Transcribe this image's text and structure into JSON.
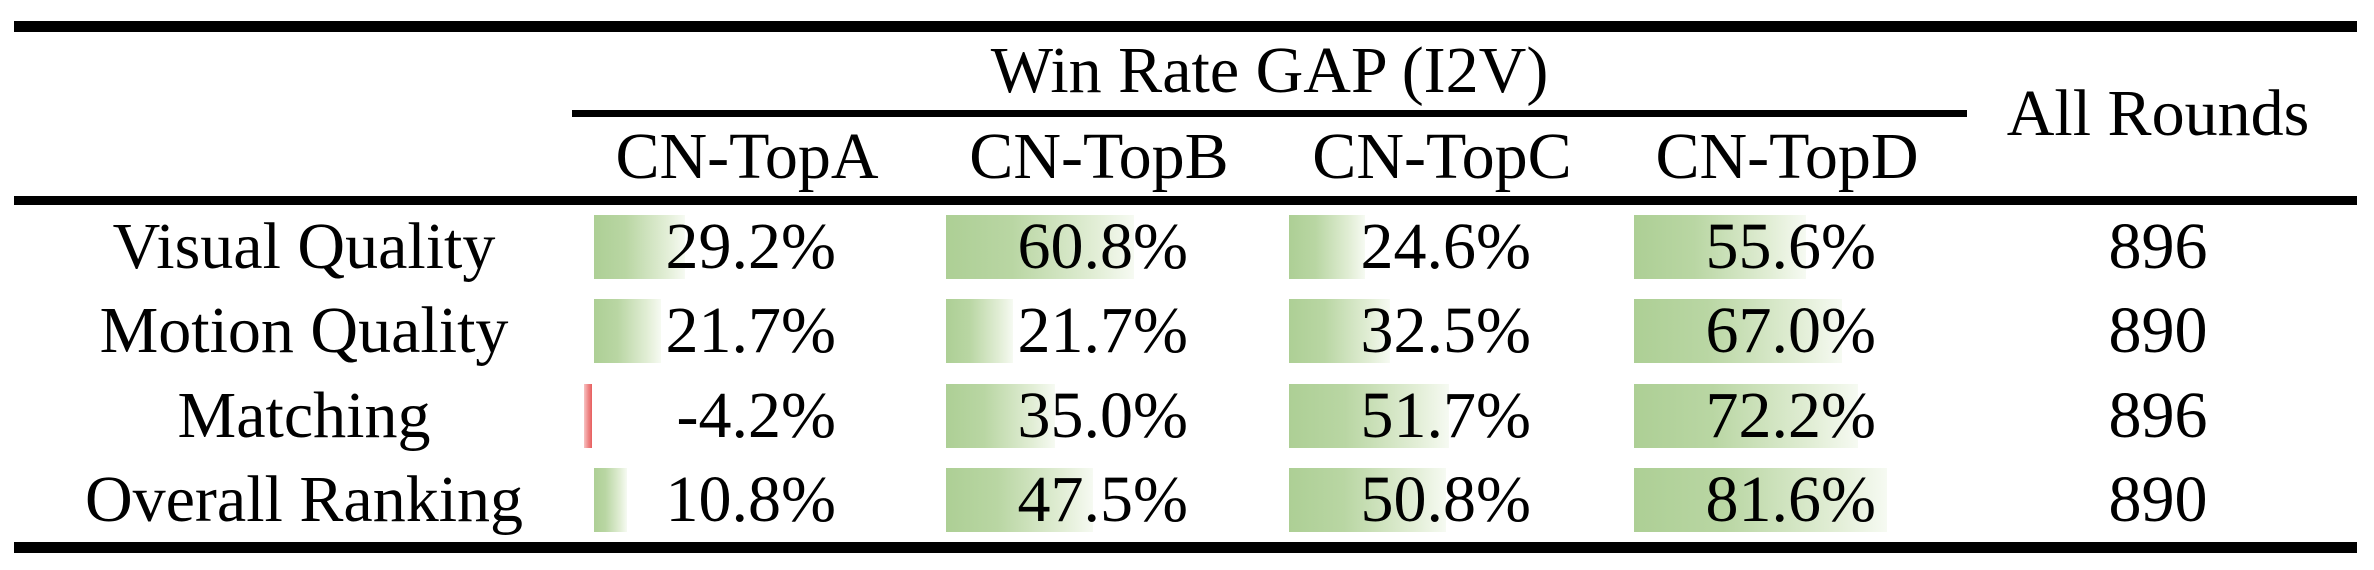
{
  "header": {
    "group_title": "Win Rate GAP (I2V)",
    "columns": [
      "CN-TopA",
      "CN-TopB",
      "CN-TopC",
      "CN-TopD"
    ],
    "all_rounds": "All Rounds"
  },
  "rows": [
    {
      "label": "Visual Quality",
      "cells": [
        {
          "display": "29.2%",
          "value": 29.2
        },
        {
          "display": "60.8%",
          "value": 60.8
        },
        {
          "display": "24.6%",
          "value": 24.6
        },
        {
          "display": "55.6%",
          "value": 55.6
        }
      ],
      "rounds": "896"
    },
    {
      "label": "Motion Quality",
      "cells": [
        {
          "display": "21.7%",
          "value": 21.7
        },
        {
          "display": "21.7%",
          "value": 21.7
        },
        {
          "display": "32.5%",
          "value": 32.5
        },
        {
          "display": "67.0%",
          "value": 67.0
        }
      ],
      "rounds": "890"
    },
    {
      "label": "Matching",
      "cells": [
        {
          "display": "-4.2%",
          "value": -4.2
        },
        {
          "display": "35.0%",
          "value": 35.0
        },
        {
          "display": "51.7%",
          "value": 51.7
        },
        {
          "display": "72.2%",
          "value": 72.2
        }
      ],
      "rounds": "896"
    },
    {
      "label": "Overall Ranking",
      "cells": [
        {
          "display": "10.8%",
          "value": 10.8
        },
        {
          "display": "47.5%",
          "value": 47.5
        },
        {
          "display": "50.8%",
          "value": 50.8
        },
        {
          "display": "81.6%",
          "value": 81.6
        }
      ],
      "rounds": "890"
    }
  ],
  "colors": {
    "positive_bar_green": "#aecf96",
    "negative_bar_red": "#e75f5f",
    "rule_black": "#000000"
  },
  "chart_data": {
    "type": "table",
    "title": "Win Rate GAP (I2V)",
    "row_labels": [
      "Visual Quality",
      "Motion Quality",
      "Matching",
      "Overall Ranking"
    ],
    "columns": [
      "CN-TopA",
      "CN-TopB",
      "CN-TopC",
      "CN-TopD",
      "All Rounds"
    ],
    "series": [
      {
        "name": "CN-TopA",
        "values": [
          29.2,
          21.7,
          -4.2,
          10.8
        ],
        "unit": "%"
      },
      {
        "name": "CN-TopB",
        "values": [
          60.8,
          21.7,
          35.0,
          47.5
        ],
        "unit": "%"
      },
      {
        "name": "CN-TopC",
        "values": [
          24.6,
          32.5,
          51.7,
          50.8
        ],
        "unit": "%"
      },
      {
        "name": "CN-TopD",
        "values": [
          55.6,
          67.0,
          72.2,
          81.6
        ],
        "unit": "%"
      },
      {
        "name": "All Rounds",
        "values": [
          896,
          890,
          896,
          890
        ],
        "unit": "rounds"
      }
    ],
    "layout_hints": "in-cell data bars, green gradient for positive values, thin red bar for negative value, booktabs-style horizontal rules"
  }
}
